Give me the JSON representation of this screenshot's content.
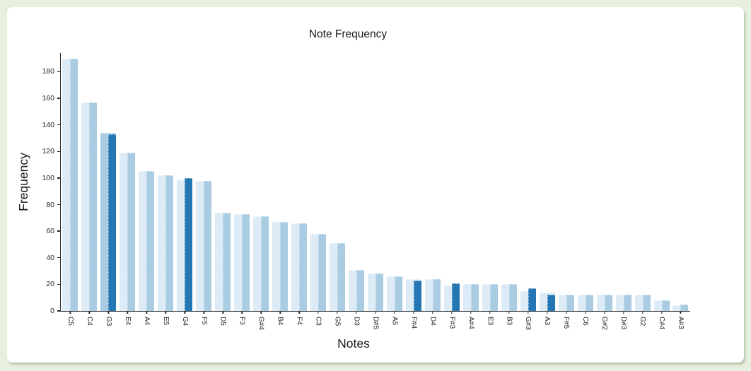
{
  "window": {
    "background_color": "#e7f0de",
    "panel_color": "#ffffff"
  },
  "chart_data": {
    "type": "bar",
    "title": "Note Frequency",
    "xlabel": "Notes",
    "ylabel": "Frequency",
    "ylim": [
      0,
      194
    ],
    "yticks": [
      0,
      20,
      40,
      60,
      80,
      100,
      120,
      140,
      160,
      180
    ],
    "grid": false,
    "legend": false,
    "axis_color": "#2b2b2b",
    "text_color": "#1a1a1a",
    "bar_colors": {
      "light": "#dcebf5",
      "medium": "#a9cce3",
      "dark": "#2577b4"
    },
    "categories": [
      "C5",
      "C4",
      "G3",
      "E4",
      "A4",
      "E5",
      "G4",
      "F5",
      "D5",
      "F3",
      "G#4",
      "B4",
      "F4",
      "C3",
      "G5",
      "D3",
      "D#5",
      "A5",
      "F#4",
      "D4",
      "F#3",
      "A#4",
      "E3",
      "B3",
      "G#3",
      "A3",
      "F#5",
      "C6",
      "G#2",
      "D#3",
      "G2",
      "C#4",
      "A#3"
    ],
    "series": [
      {
        "name": "base",
        "values": [
          190,
          157,
          134,
          119,
          105,
          102,
          99,
          98,
          74,
          73,
          71,
          67,
          66,
          58,
          51,
          31,
          28,
          26,
          24,
          24,
          19,
          20,
          20,
          20,
          15,
          14,
          12,
          12,
          12,
          12,
          12,
          8,
          4
        ]
      },
      {
        "name": "overlay",
        "values": [
          190,
          157,
          133,
          119,
          105,
          102,
          100,
          98,
          74,
          73,
          71,
          67,
          66,
          58,
          51,
          31,
          28,
          26,
          23,
          24,
          21,
          20,
          20,
          20,
          17,
          12,
          12,
          12,
          12,
          12,
          12,
          8,
          5
        ]
      }
    ],
    "highlighted_notes": [
      "G3",
      "G4",
      "F#4",
      "F#3",
      "G#3",
      "A3"
    ],
    "base_shade_overrides": {
      "G3": "medium"
    }
  }
}
